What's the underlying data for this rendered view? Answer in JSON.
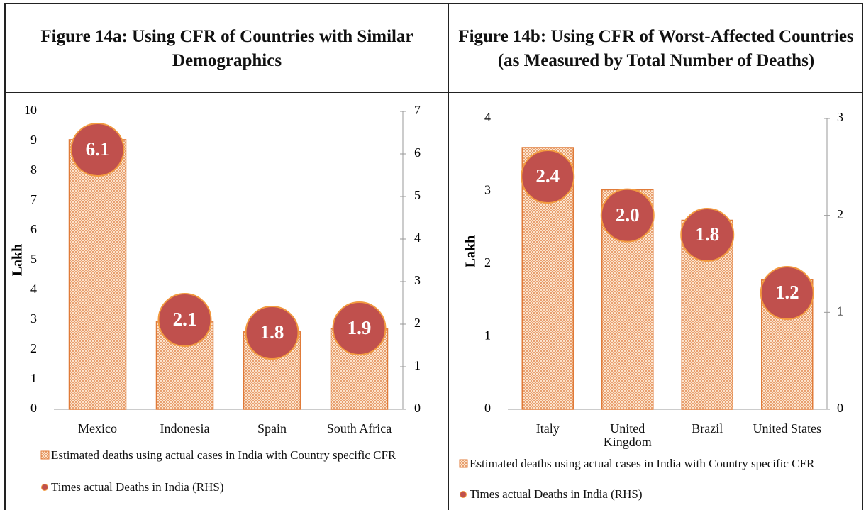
{
  "chart_data": [
    {
      "type": "bar",
      "title": "Figure 14a: Using CFR of Countries with Similar Demographics",
      "y_label": "Lakh",
      "categories": [
        "Mexico",
        "Indonesia",
        "Spain",
        "South Africa"
      ],
      "series": [
        {
          "name": "Estimated deaths using actual cases in India with Country specific CFR",
          "color": "#e07b39",
          "values": [
            9.05,
            2.95,
            2.6,
            2.7
          ]
        },
        {
          "name": "Times actual Deaths in India (RHS)",
          "color": "#c0504d",
          "axis": "y2",
          "values": [
            6.1,
            2.1,
            1.8,
            1.9
          ]
        }
      ],
      "ylim": [
        0,
        10
      ],
      "yticks": [
        0,
        1,
        2,
        3,
        4,
        5,
        6,
        7,
        8,
        9,
        10
      ],
      "y2lim": [
        0,
        7
      ],
      "y2ticks": [
        0,
        1,
        2,
        3,
        4,
        5,
        6,
        7
      ]
    },
    {
      "type": "bar",
      "title": "Figure 14b: Using CFR of Worst-Affected Countries (as Measured by Total Number of Deaths)",
      "y_label": "Lakh",
      "categories": [
        "Italy",
        "United Kingdom",
        "Brazil",
        "United States"
      ],
      "series": [
        {
          "name": "Estimated deaths using actual cases in India with Country specific CFR",
          "color": "#e07b39",
          "values": [
            3.6,
            3.02,
            2.6,
            1.78
          ]
        },
        {
          "name": "Times actual Deaths in India (RHS)",
          "color": "#c0504d",
          "axis": "y2",
          "values": [
            2.4,
            2.0,
            1.8,
            1.2
          ],
          "value_labels": [
            "2.4",
            "2.0",
            "1.8",
            "1.2"
          ]
        }
      ],
      "ylim": [
        0,
        4
      ],
      "yticks": [
        0,
        1,
        2,
        3,
        4
      ],
      "y2lim": [
        0,
        3
      ],
      "y2ticks": [
        0,
        1,
        2,
        3
      ]
    }
  ]
}
